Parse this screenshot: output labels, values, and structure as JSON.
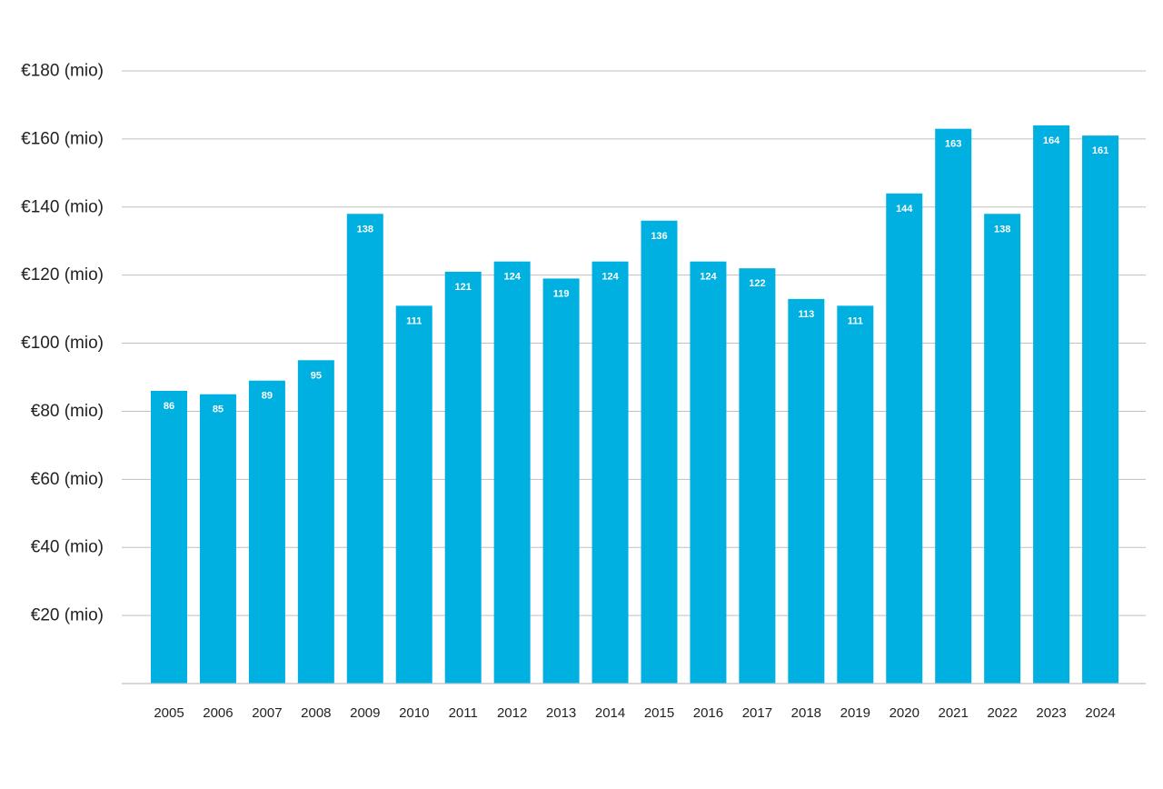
{
  "chart_data": {
    "type": "bar",
    "title": "",
    "xlabel": "",
    "ylabel": "",
    "categories": [
      "2005",
      "2006",
      "2007",
      "2008",
      "2009",
      "2010",
      "2011",
      "2012",
      "2013",
      "2014",
      "2015",
      "2016",
      "2017",
      "2018",
      "2019",
      "2020",
      "2021",
      "2022",
      "2023",
      "2024"
    ],
    "values": [
      86,
      85,
      89,
      95,
      138,
      111,
      121,
      124,
      119,
      124,
      136,
      124,
      122,
      113,
      111,
      144,
      163,
      138,
      164,
      161
    ],
    "ylim": [
      0,
      180
    ],
    "yticks": [
      20,
      40,
      60,
      80,
      100,
      120,
      140,
      160,
      180
    ],
    "ytick_labels": [
      "€20 (mio)",
      "€40 (mio)",
      "€60 (mio)",
      "€80 (mio)",
      "€100 (mio)",
      "€120 (mio)",
      "€140 (mio)",
      "€160 (mio)",
      "€180 (mio)"
    ],
    "data_labels": true,
    "grid": true,
    "bar_color": "#00b0e0",
    "grid_color": "#bfbfbf"
  }
}
